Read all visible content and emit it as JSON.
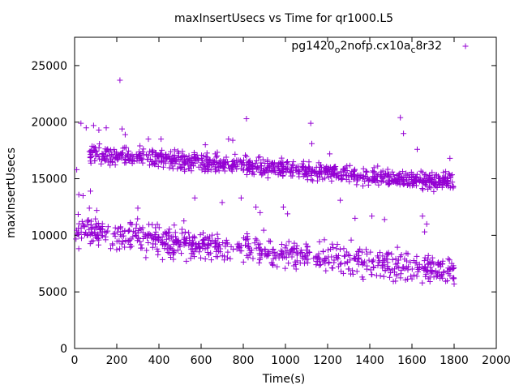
{
  "chart_data": {
    "type": "scatter",
    "title": "maxInsertUsecs vs Time for qr1000.L5",
    "xlabel": "Time(s)",
    "ylabel": "maxInsertUsecs",
    "xlim": [
      0,
      2000
    ],
    "ylim": [
      0,
      27500
    ],
    "xticks": [
      0,
      200,
      400,
      600,
      800,
      1000,
      1200,
      1400,
      1600,
      1800,
      2000
    ],
    "yticks": [
      0,
      5000,
      10000,
      15000,
      20000,
      25000
    ],
    "xtick_labels": [
      "0",
      "200",
      "400",
      "600",
      "800",
      "1000",
      "1200",
      "1400",
      "1600",
      "1800",
      "2000"
    ],
    "ytick_labels": [
      "0",
      "5000",
      "10000",
      "15000",
      "20000",
      "25000"
    ],
    "marker": "+",
    "color": "#9400d3",
    "legend_location": "top-right",
    "series": [
      {
        "name_parts": [
          "pg1420",
          "o",
          "2nofp.cx10a",
          "c",
          "8r32"
        ],
        "bands": [
          {
            "x_start": 70,
            "x_end": 1800,
            "y_start": 17200,
            "y_end": 14700
          },
          {
            "x_start": 0,
            "x_end": 1800,
            "y_start": 10400,
            "y_end": 6800
          }
        ],
        "outliers": [
          {
            "x": 10,
            "y": 15800
          },
          {
            "x": 20,
            "y": 13600
          },
          {
            "x": 40,
            "y": 13500
          },
          {
            "x": 30,
            "y": 19900
          },
          {
            "x": 55,
            "y": 19500
          },
          {
            "x": 90,
            "y": 19700
          },
          {
            "x": 115,
            "y": 19300
          },
          {
            "x": 150,
            "y": 19500
          },
          {
            "x": 75,
            "y": 13900
          },
          {
            "x": 70,
            "y": 12400
          },
          {
            "x": 105,
            "y": 12200
          },
          {
            "x": 215,
            "y": 23700
          },
          {
            "x": 225,
            "y": 19400
          },
          {
            "x": 240,
            "y": 18900
          },
          {
            "x": 300,
            "y": 12400
          },
          {
            "x": 310,
            "y": 17900
          },
          {
            "x": 350,
            "y": 18500
          },
          {
            "x": 410,
            "y": 18500
          },
          {
            "x": 570,
            "y": 13300
          },
          {
            "x": 620,
            "y": 18000
          },
          {
            "x": 700,
            "y": 12900
          },
          {
            "x": 730,
            "y": 18500
          },
          {
            "x": 750,
            "y": 18400
          },
          {
            "x": 790,
            "y": 13300
          },
          {
            "x": 815,
            "y": 20300
          },
          {
            "x": 860,
            "y": 12500
          },
          {
            "x": 880,
            "y": 12000
          },
          {
            "x": 990,
            "y": 12500
          },
          {
            "x": 1010,
            "y": 11900
          },
          {
            "x": 1120,
            "y": 19900
          },
          {
            "x": 1125,
            "y": 18100
          },
          {
            "x": 1210,
            "y": 17200
          },
          {
            "x": 1260,
            "y": 13100
          },
          {
            "x": 1330,
            "y": 11500
          },
          {
            "x": 1410,
            "y": 11700
          },
          {
            "x": 1470,
            "y": 11400
          },
          {
            "x": 1545,
            "y": 20400
          },
          {
            "x": 1560,
            "y": 19000
          },
          {
            "x": 1625,
            "y": 17600
          },
          {
            "x": 1650,
            "y": 11700
          },
          {
            "x": 1660,
            "y": 10300
          },
          {
            "x": 1670,
            "y": 11000
          },
          {
            "x": 1780,
            "y": 16800
          },
          {
            "x": 1800,
            "y": 5700
          }
        ]
      }
    ]
  }
}
